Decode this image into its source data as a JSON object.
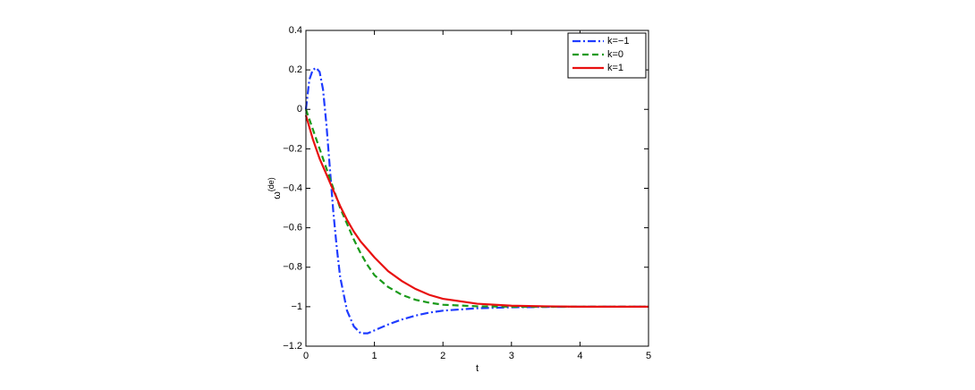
{
  "chart_data": {
    "type": "line",
    "xlabel": "t",
    "ylabel": "ω",
    "ylabel_superscript": "(de)",
    "x": [
      0,
      0.05,
      0.1,
      0.15,
      0.2,
      0.25,
      0.3,
      0.35,
      0.4,
      0.45,
      0.5,
      0.6,
      0.7,
      0.8,
      0.9,
      1,
      1.2,
      1.4,
      1.6,
      1.8,
      2,
      2.5,
      3,
      3.5,
      4,
      5
    ],
    "series": [
      {
        "name": "k=−1",
        "color": "#1f3cff",
        "dash": "dash-dot",
        "values": [
          0,
          0.15,
          0.2,
          0.21,
          0.19,
          0.1,
          -0.08,
          -0.3,
          -0.52,
          -0.7,
          -0.85,
          -1.02,
          -1.1,
          -1.135,
          -1.135,
          -1.12,
          -1.09,
          -1.065,
          -1.045,
          -1.03,
          -1.02,
          -1.008,
          -1.003,
          -1.001,
          -1,
          -1
        ]
      },
      {
        "name": "k=0",
        "color": "#1a9a1a",
        "dash": "dashed",
        "values": [
          0,
          -0.05,
          -0.1,
          -0.15,
          -0.2,
          -0.25,
          -0.3,
          -0.35,
          -0.4,
          -0.45,
          -0.5,
          -0.58,
          -0.66,
          -0.73,
          -0.79,
          -0.84,
          -0.9,
          -0.94,
          -0.965,
          -0.98,
          -0.99,
          -0.998,
          -1,
          -1,
          -1,
          -1
        ]
      },
      {
        "name": "k=1",
        "color": "#e81010",
        "dash": "solid",
        "values": [
          -0.03,
          -0.09,
          -0.15,
          -0.2,
          -0.25,
          -0.29,
          -0.33,
          -0.37,
          -0.41,
          -0.45,
          -0.49,
          -0.56,
          -0.62,
          -0.67,
          -0.71,
          -0.75,
          -0.82,
          -0.87,
          -0.91,
          -0.94,
          -0.96,
          -0.985,
          -0.995,
          -0.998,
          -1,
          -1
        ]
      }
    ],
    "xlim": [
      0,
      5
    ],
    "xticks": [
      0,
      1,
      2,
      3,
      4,
      5
    ],
    "ylim": [
      -1.2,
      0.4
    ],
    "yticks": [
      {
        "value": -1.2,
        "label": "−1.2"
      },
      {
        "value": -1,
        "label": "−1"
      },
      {
        "value": -0.8,
        "label": "−0.8"
      },
      {
        "value": -0.6,
        "label": "−0.6"
      },
      {
        "value": -0.4,
        "label": "−0.4"
      },
      {
        "value": -0.2,
        "label": "−0.2"
      },
      0,
      0.2,
      0.4
    ],
    "legend": "top-right",
    "grid": false
  }
}
